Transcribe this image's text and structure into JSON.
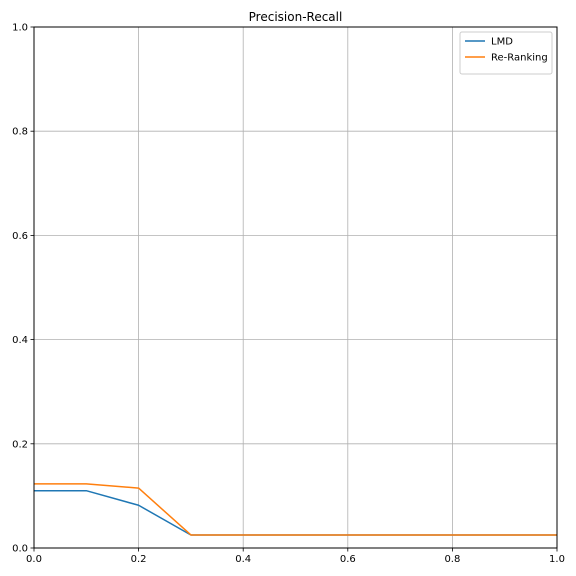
{
  "chart_data": {
    "type": "line",
    "title": "Precision-Recall",
    "xlabel": "",
    "ylabel": "",
    "xlim": [
      0.0,
      1.0
    ],
    "ylim": [
      0.0,
      1.0
    ],
    "xticks": [
      "0.0",
      "0.2",
      "0.4",
      "0.6",
      "0.8",
      "1.0"
    ],
    "yticks": [
      "0.0",
      "0.2",
      "0.4",
      "0.6",
      "0.8",
      "1.0"
    ],
    "grid": true,
    "legend_position": "top-right",
    "x": [
      0.0,
      0.1,
      0.2,
      0.3,
      0.4,
      0.5,
      0.6,
      0.7,
      0.8,
      0.9,
      1.0
    ],
    "series": [
      {
        "name": "LMD",
        "color": "#1f77b4",
        "values": [
          0.11,
          0.11,
          0.082,
          0.025,
          0.025,
          0.025,
          0.025,
          0.025,
          0.025,
          0.025,
          0.025
        ]
      },
      {
        "name": "Re-Ranking",
        "color": "#ff7f0e",
        "values": [
          0.123,
          0.123,
          0.115,
          0.025,
          0.025,
          0.025,
          0.025,
          0.025,
          0.025,
          0.025,
          0.025
        ]
      }
    ]
  }
}
